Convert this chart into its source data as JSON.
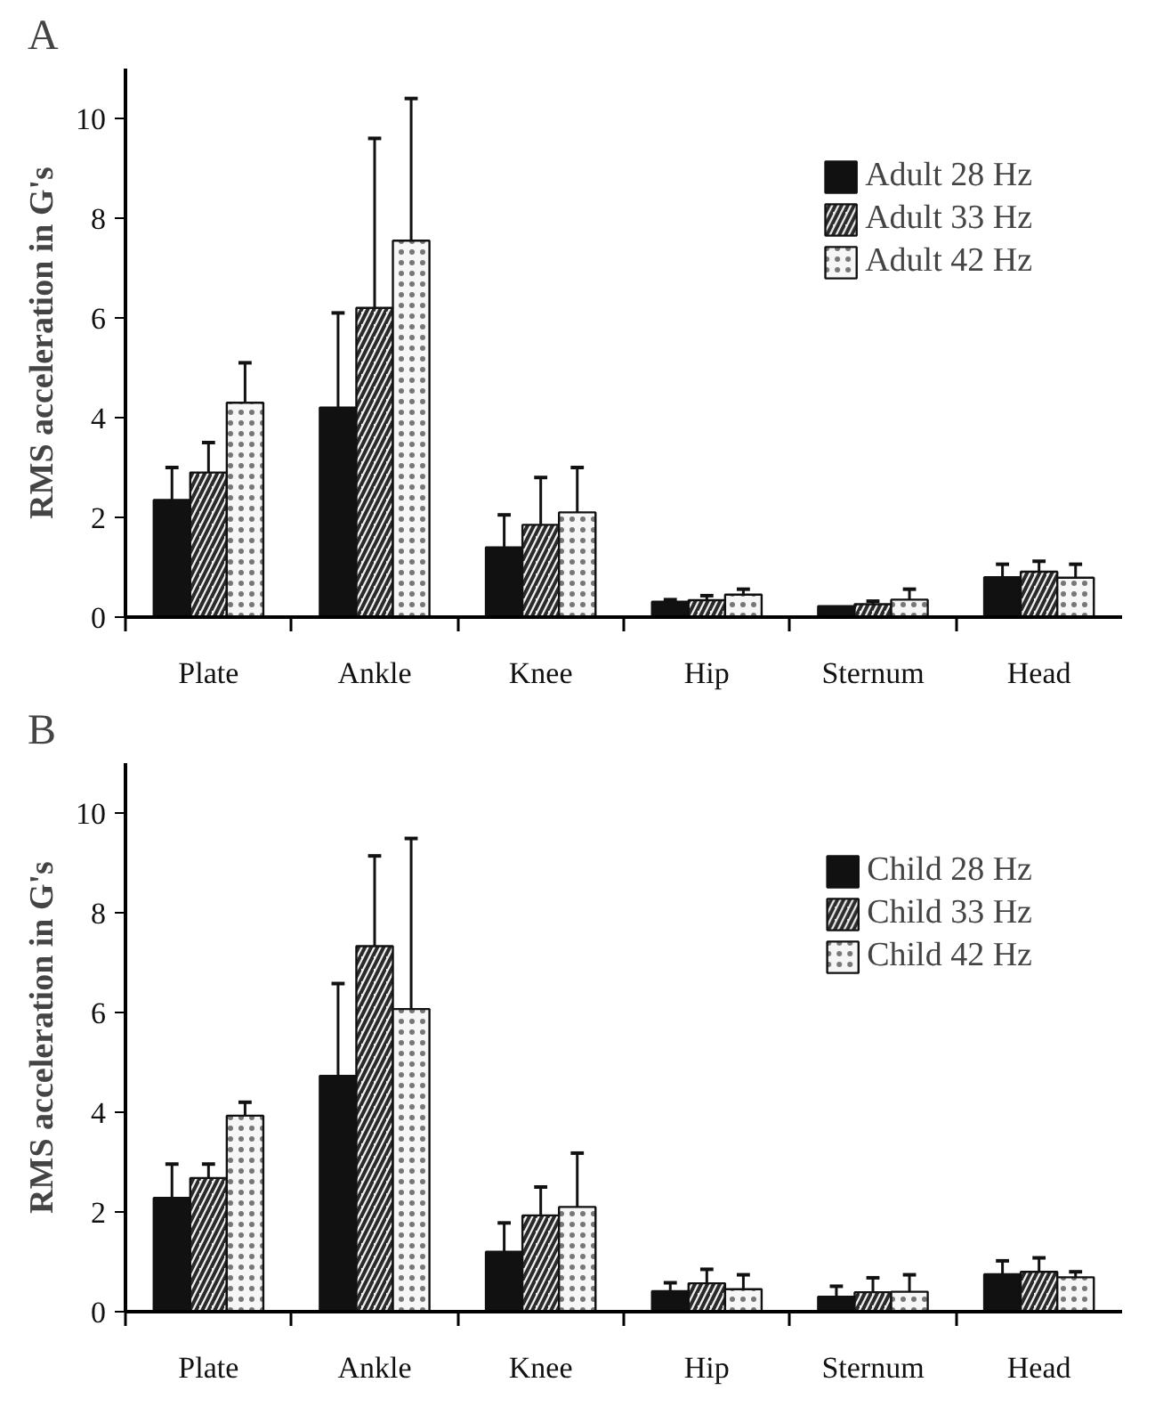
{
  "chart_data": [
    {
      "type": "bar",
      "title": "A",
      "ylabel": "RMS acceleration in G's",
      "categories": [
        "Plate",
        "Ankle",
        "Knee",
        "Hip",
        "Sternum",
        "Head"
      ],
      "ylim": [
        0,
        11
      ],
      "yticks": [
        0,
        2,
        4,
        6,
        8,
        10
      ],
      "grid": false,
      "legend": "top right",
      "series": [
        {
          "name": "Adult 28 Hz",
          "color": "#111111",
          "values": [
            2.35,
            4.2,
            1.4,
            0.31,
            0.22,
            0.8
          ],
          "errors": [
            [
              2.35,
              3.0
            ],
            [
              4.2,
              6.1
            ],
            [
              1.4,
              2.05
            ],
            [
              0.31,
              0.35
            ],
            null,
            [
              0.8,
              1.06
            ]
          ]
        },
        {
          "name": "Adult 33 Hz",
          "color": "#f0f0f0",
          "values": [
            2.9,
            6.2,
            1.85,
            0.34,
            0.26,
            0.91
          ],
          "errors": [
            [
              2.9,
              3.5
            ],
            [
              6.2,
              9.6
            ],
            [
              1.85,
              2.8
            ],
            [
              0.34,
              0.43
            ],
            [
              0.26,
              0.32
            ],
            [
              0.91,
              1.12
            ]
          ]
        },
        {
          "name": "Adult 42 Hz",
          "color": "#f6f6f6",
          "values": [
            4.3,
            7.55,
            2.1,
            0.45,
            0.35,
            0.79
          ],
          "errors": [
            [
              4.3,
              5.1
            ],
            [
              7.55,
              10.4
            ],
            [
              2.1,
              3.0
            ],
            [
              0.45,
              0.56
            ],
            [
              0.35,
              0.56
            ],
            [
              0.79,
              1.06
            ]
          ]
        }
      ]
    },
    {
      "type": "bar",
      "title": "B",
      "ylabel": "RMS acceleration in G's",
      "categories": [
        "Plate",
        "Ankle",
        "Knee",
        "Hip",
        "Sternum",
        "Head"
      ],
      "ylim": [
        0,
        11
      ],
      "yticks": [
        0,
        2,
        4,
        6,
        8,
        10
      ],
      "grid": false,
      "legend": "top right",
      "series": [
        {
          "name": "Child 28 Hz",
          "color": "#111111",
          "values": [
            2.28,
            4.73,
            1.2,
            0.41,
            0.3,
            0.75
          ],
          "errors": [
            [
              2.28,
              2.96
            ],
            [
              4.73,
              6.58
            ],
            [
              1.2,
              1.78
            ],
            [
              0.41,
              0.58
            ],
            [
              0.3,
              0.51
            ],
            [
              0.75,
              1.02
            ]
          ]
        },
        {
          "name": "Child 33 Hz",
          "color": "#f0f0f0",
          "values": [
            2.68,
            7.33,
            1.93,
            0.57,
            0.39,
            0.8
          ],
          "errors": [
            [
              2.68,
              2.96
            ],
            [
              7.33,
              9.14
            ],
            [
              1.93,
              2.5
            ],
            [
              0.57,
              0.85
            ],
            [
              0.39,
              0.68
            ],
            [
              0.8,
              1.08
            ]
          ]
        },
        {
          "name": "Child 42 Hz",
          "color": "#f6f6f6",
          "values": [
            3.93,
            6.07,
            2.1,
            0.45,
            0.4,
            0.69
          ],
          "errors": [
            [
              3.93,
              4.2
            ],
            [
              6.07,
              9.49
            ],
            [
              2.1,
              3.18
            ],
            [
              0.45,
              0.74
            ],
            [
              0.4,
              0.74
            ],
            [
              0.69,
              0.8
            ]
          ]
        }
      ]
    }
  ]
}
